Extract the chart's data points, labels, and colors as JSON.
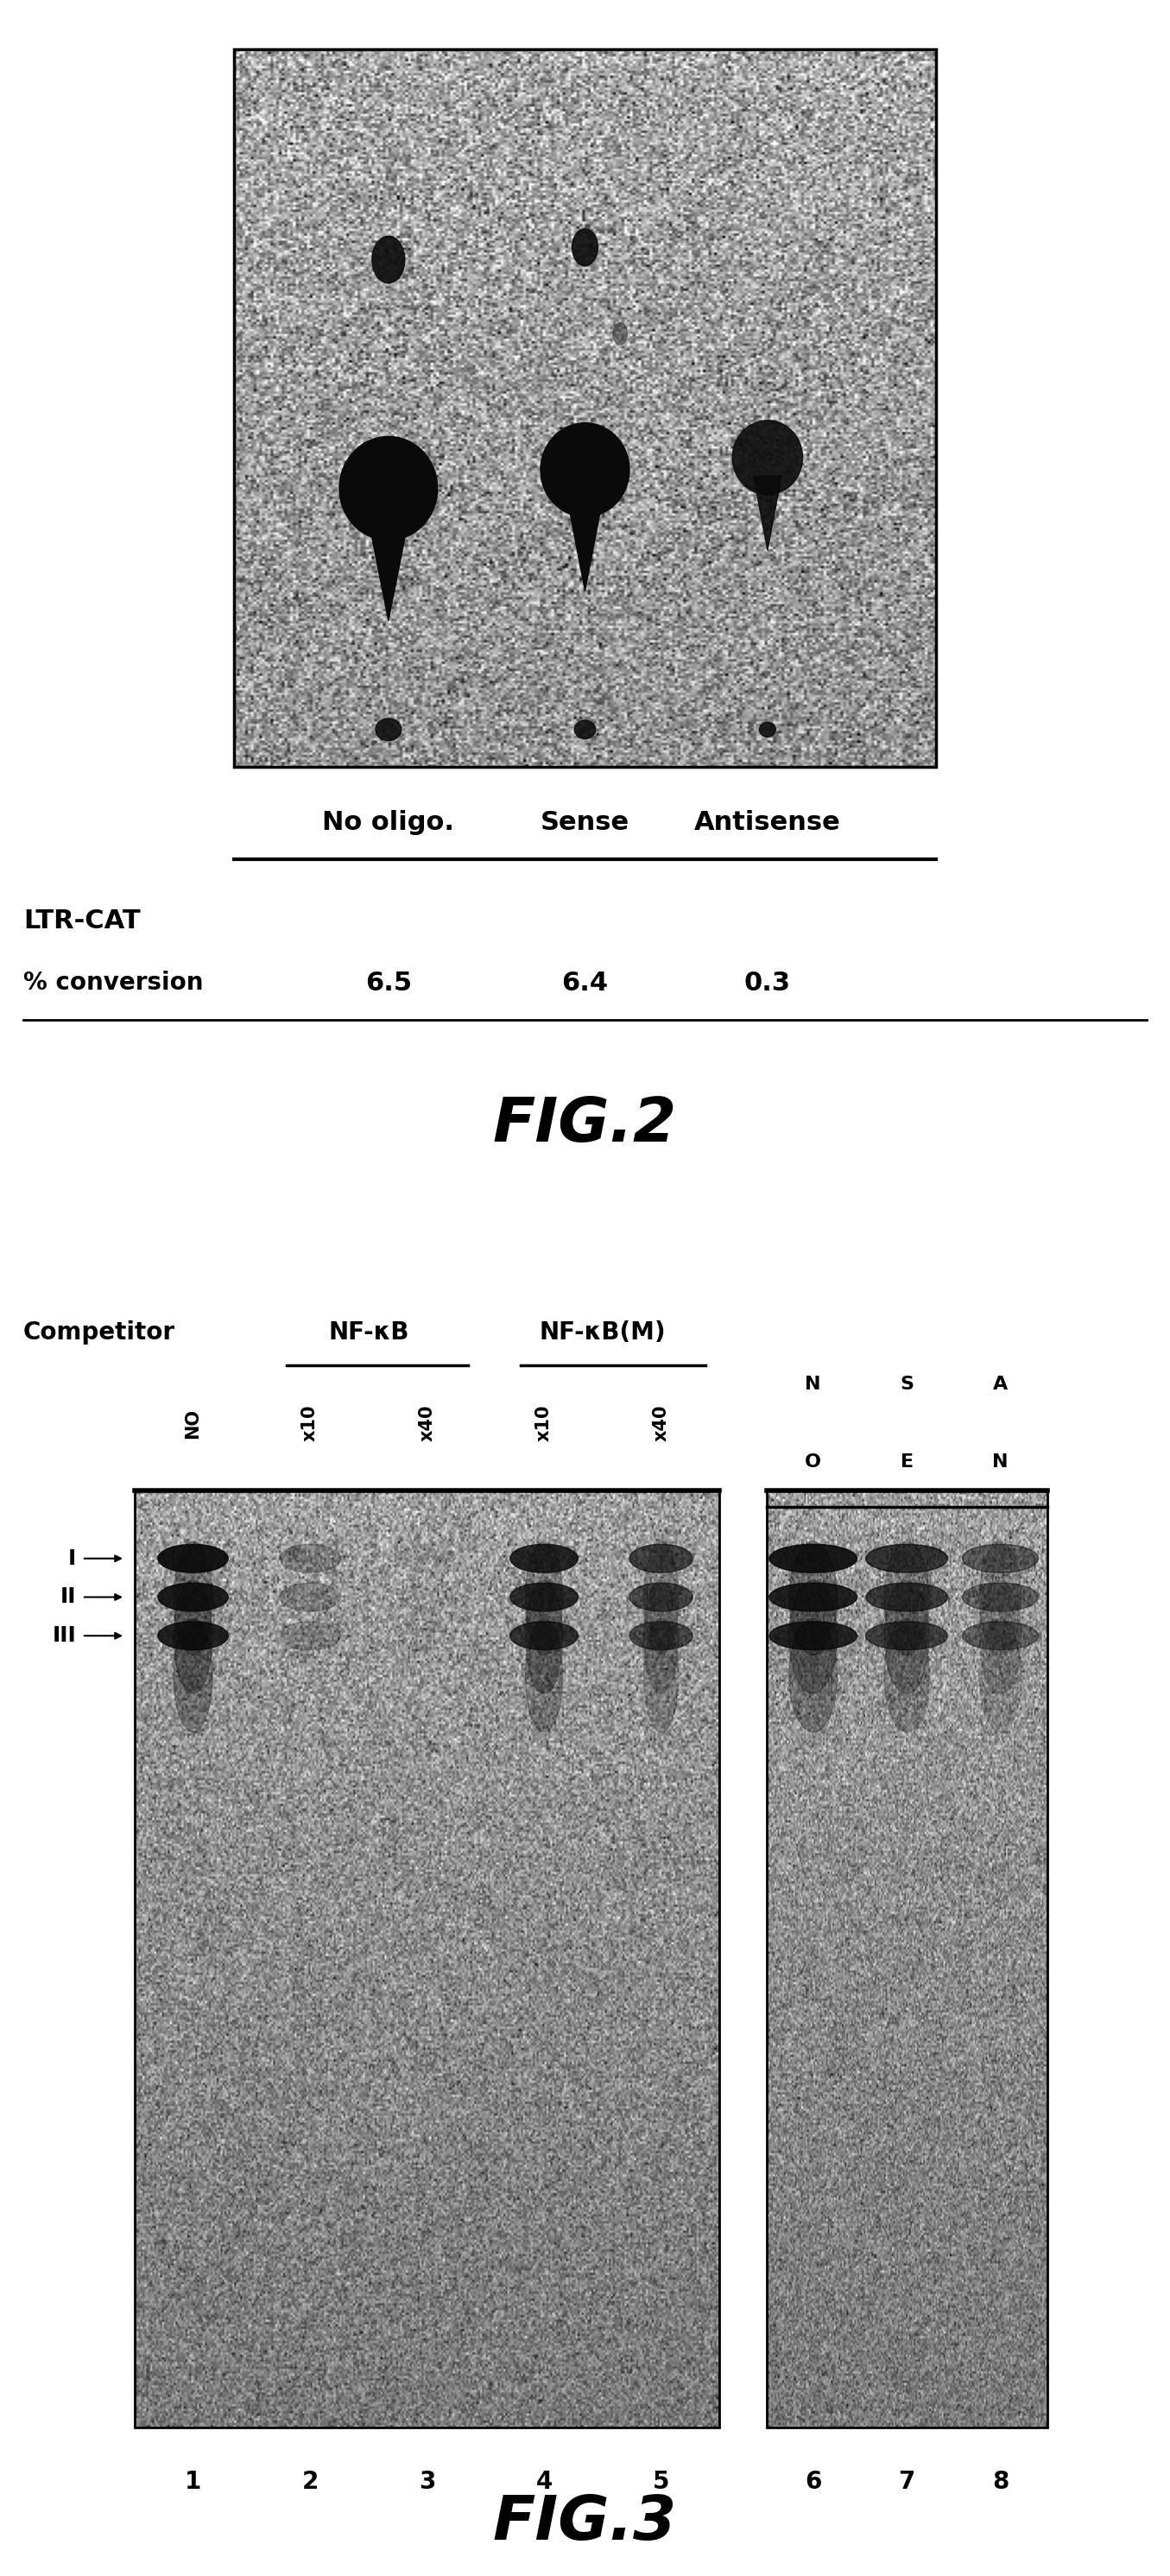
{
  "fig2_title": "FIG.2",
  "fig3_title": "FIG.3",
  "fig2_labels": [
    "No oligo.",
    "Sense",
    "Antisense"
  ],
  "fig2_ltr_cat": "LTR-CAT",
  "fig2_pct_label": "% conversion",
  "fig2_values": [
    "6.5",
    "6.4",
    "0.3"
  ],
  "fig3_competitor_label": "Competitor",
  "fig3_nfkb_label": "NF-κB",
  "fig3_nfkbm_label": "NF-κB(M)",
  "fig3_lane_nums": [
    "1",
    "2",
    "3",
    "4",
    "5",
    "6",
    "7",
    "8"
  ],
  "fig3_band_labels": [
    "I",
    "II",
    "III"
  ],
  "background_color": "#ffffff",
  "spot_color": "#0a0a0a",
  "text_color": "#000000",
  "plate_noise_mean": 0.62,
  "plate_noise_std": 0.18,
  "gel_noise_mean": 0.65,
  "gel_noise_std": 0.15
}
